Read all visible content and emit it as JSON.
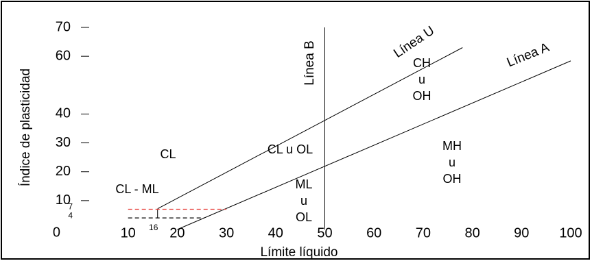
{
  "chart_data": {
    "type": "line",
    "x_label": "Límite líquido",
    "y_label": "Índice de plasticidad",
    "xlim": [
      0,
      100
    ],
    "ylim": [
      0,
      70
    ],
    "xticks": [
      10,
      20,
      30,
      40,
      50,
      60,
      70,
      80,
      90,
      100
    ],
    "yticks": [
      0,
      10,
      20,
      30,
      40,
      60,
      70
    ],
    "minor_xticks": [
      16
    ],
    "minor_yticks": [
      7,
      4
    ],
    "series": [
      {
        "name": "Línea A",
        "color": "#000000",
        "x": [
          20,
          100
        ],
        "values": [
          0,
          58.4
        ]
      },
      {
        "name": "Línea U",
        "color": "#000000",
        "x": [
          16,
          78
        ],
        "values": [
          7.2,
          63
        ]
      },
      {
        "name": "Línea B",
        "color": "#000000",
        "x": [
          50,
          50
        ],
        "values": [
          0,
          70
        ]
      },
      {
        "color": "#e8413c",
        "dash": true,
        "x": [
          10,
          30
        ],
        "values": [
          7,
          7
        ]
      },
      {
        "color": "#000000",
        "dash": true,
        "x": [
          10,
          25.5
        ],
        "values": [
          4,
          4
        ]
      }
    ],
    "annotations": [
      [
        "CL"
      ],
      [
        "CL - ML"
      ],
      [
        "CL u OL"
      ],
      [
        "ML",
        "u",
        "OL"
      ],
      [
        "CH",
        "u",
        "OH"
      ],
      [
        "MH",
        "u",
        "OH"
      ]
    ]
  }
}
